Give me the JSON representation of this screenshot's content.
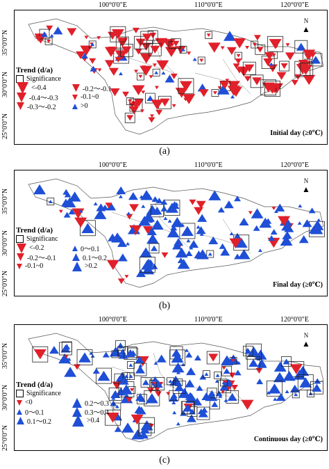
{
  "panels": [
    {
      "id": "a",
      "label": "(a)",
      "title_corner": "Initial day (≥0℃)",
      "ticks_top": [
        "100°0'0\"E",
        "110°0'0\"E",
        "120°0'0\"E"
      ],
      "ticks_left": [
        "35°0'0\"N",
        "30°0'0\"N",
        "25°0'0\"N"
      ],
      "legend_title": "Trend (d/a)",
      "significance_label": "Significance",
      "legend_items": [
        {
          "label": "<-0.4",
          "dir": "down",
          "size": 3
        },
        {
          "label": "-0.2～-0.1",
          "dir": "down",
          "size": 1
        },
        {
          "label": "-0.4～-0.3",
          "dir": "down",
          "size": 2
        },
        {
          "label": "-0.1~0",
          "dir": "down",
          "size": 0
        },
        {
          "label": "-0.3～-0.2",
          "dir": "down",
          "size": 1
        },
        {
          "label": ">0",
          "dir": "up",
          "size": 0
        }
      ],
      "north_label": "N"
    },
    {
      "id": "b",
      "label": "(b)",
      "title_corner": "Final day (≥0℃)",
      "ticks_top": [
        "100°0'0\"E",
        "110°0'0\"E",
        "120°0'0\"E"
      ],
      "ticks_left": [
        "35°0'0\"N",
        "30°0'0\"N",
        "25°0'0\"N"
      ],
      "legend_title": "Trend (d/a)",
      "significance_label": "Significanc",
      "legend_items": [
        {
          "label": "<-0.2",
          "dir": "down",
          "size": 2
        },
        {
          "label": "0～0.1",
          "dir": "up",
          "size": 0
        },
        {
          "label": "-0.2～-0.1",
          "dir": "down",
          "size": 1
        },
        {
          "label": "0.1～0.2",
          "dir": "up",
          "size": 1
        },
        {
          "label": "-0.1~0",
          "dir": "down",
          "size": 0
        },
        {
          "label": ">0.2",
          "dir": "up",
          "size": 2
        }
      ],
      "north_label": "N"
    },
    {
      "id": "c",
      "label": "(c)",
      "title_corner": "Continuous day (≥0℃)",
      "ticks_top": [
        "100°0'0\"E",
        "110°0'0\"E",
        "120°0'0\"E"
      ],
      "ticks_left": [
        "35°0'0\"N",
        "30°0'0\"N",
        "25°0'0\"N"
      ],
      "legend_title": "Trend (d/a)",
      "significance_label": "Significance",
      "legend_items": [
        {
          "label": "<0",
          "dir": "down",
          "size": 0
        },
        {
          "label": "0.2～0.3",
          "dir": "up",
          "size": 2
        },
        {
          "label": "0～0.1",
          "dir": "up",
          "size": 0
        },
        {
          "label": "0.3～0.4",
          "dir": "up",
          "size": 2
        },
        {
          "label": "0.1～0.2",
          "dir": "up",
          "size": 1
        },
        {
          "label": ">0.4",
          "dir": "up",
          "size": 3
        }
      ],
      "north_label": "N"
    }
  ],
  "colors": {
    "negative": "#e0202a",
    "positive": "#1f4fd6",
    "outline": "#555555"
  }
}
